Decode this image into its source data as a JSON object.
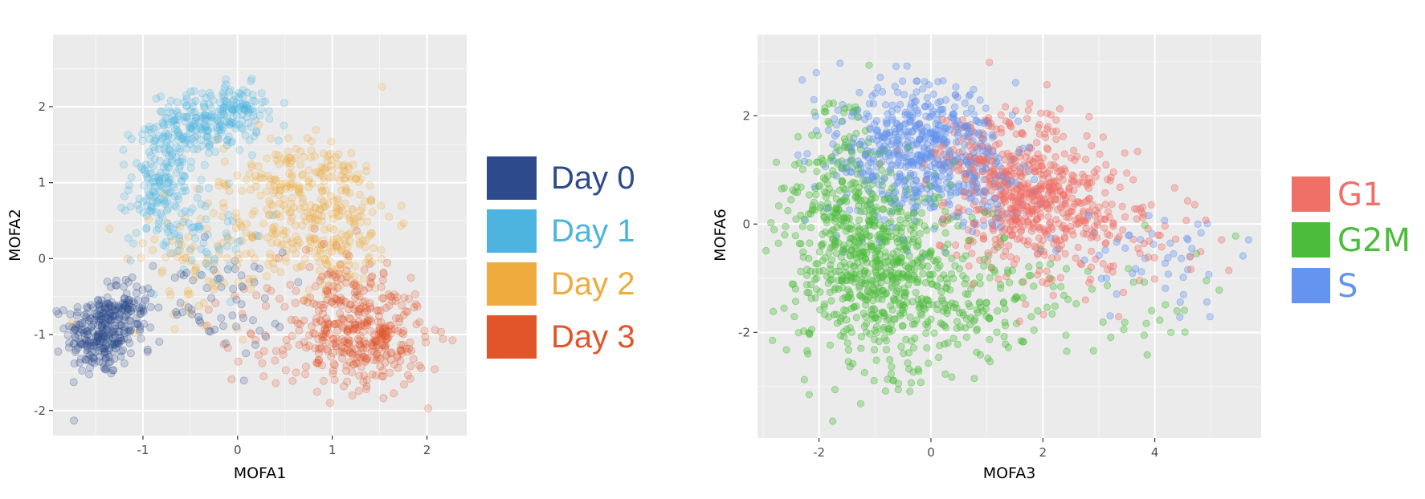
{
  "chart_data": [
    {
      "type": "scatter",
      "xlabel": "MOFA1",
      "ylabel": "MOFA2",
      "xlim": [
        -1.95,
        2.42
      ],
      "ylim": [
        -2.33,
        2.95
      ],
      "xticks": [
        -1,
        0,
        1,
        2
      ],
      "yticks": [
        -2,
        -1,
        0,
        1,
        2
      ],
      "grid": true,
      "legend_position": "right",
      "series": [
        {
          "name": "Day 0",
          "color": "#2d4a8c",
          "clusters": [
            {
              "cx": -1.45,
              "cy": -1.0,
              "sx": 0.18,
              "sy": 0.27,
              "n": 260
            },
            {
              "cx": -1.15,
              "cy": -0.65,
              "sx": 0.15,
              "sy": 0.2,
              "n": 80
            },
            {
              "cx": -0.3,
              "cy": -0.6,
              "sx": 0.4,
              "sy": 0.35,
              "n": 60
            }
          ]
        },
        {
          "name": "Day 1",
          "color": "#4db4e0",
          "clusters": [
            {
              "cx": -0.35,
              "cy": 1.78,
              "sx": 0.28,
              "sy": 0.2,
              "n": 200
            },
            {
              "cx": -0.8,
              "cy": 1.0,
              "sx": 0.17,
              "sy": 0.38,
              "n": 170
            },
            {
              "cx": 0.02,
              "cy": 1.95,
              "sx": 0.14,
              "sy": 0.17,
              "n": 60
            },
            {
              "cx": -0.4,
              "cy": 0.35,
              "sx": 0.35,
              "sy": 0.35,
              "n": 60
            }
          ]
        },
        {
          "name": "Day 2",
          "color": "#efab3d",
          "clusters": [
            {
              "cx": 0.95,
              "cy": 0.55,
              "sx": 0.35,
              "sy": 0.5,
              "n": 280
            },
            {
              "cx": 0.4,
              "cy": 1.0,
              "sx": 0.3,
              "sy": 0.35,
              "n": 90
            },
            {
              "cx": -0.3,
              "cy": 0.0,
              "sx": 0.45,
              "sy": 0.4,
              "n": 90
            }
          ]
        },
        {
          "name": "Day 3",
          "color": "#e2542a",
          "clusters": [
            {
              "cx": 1.35,
              "cy": -1.05,
              "sx": 0.32,
              "sy": 0.32,
              "n": 320
            },
            {
              "cx": 1.1,
              "cy": -0.35,
              "sx": 0.25,
              "sy": 0.3,
              "n": 80
            },
            {
              "cx": 0.4,
              "cy": -1.0,
              "sx": 0.35,
              "sy": 0.35,
              "n": 50
            }
          ]
        }
      ]
    },
    {
      "type": "scatter",
      "xlabel": "MOFA3",
      "ylabel": "MOFA6",
      "xlim": [
        -3.1,
        5.9
      ],
      "ylim": [
        -3.95,
        3.5
      ],
      "xticks": [
        -2,
        0,
        2,
        4
      ],
      "yticks": [
        -2,
        0,
        2
      ],
      "grid": true,
      "legend_position": "right",
      "series": [
        {
          "name": "G1",
          "color": "#f07068",
          "clusters": [
            {
              "cx": 1.8,
              "cy": 0.45,
              "sx": 0.65,
              "sy": 0.7,
              "n": 520
            },
            {
              "cx": 3.2,
              "cy": -0.2,
              "sx": 0.75,
              "sy": 0.55,
              "n": 90
            },
            {
              "cx": 0.8,
              "cy": 1.3,
              "sx": 0.5,
              "sy": 0.4,
              "n": 100
            }
          ]
        },
        {
          "name": "G2M",
          "color": "#4cbc3c",
          "clusters": [
            {
              "cx": -1.0,
              "cy": -0.8,
              "sx": 0.7,
              "sy": 0.85,
              "n": 650
            },
            {
              "cx": -1.7,
              "cy": 0.8,
              "sx": 0.4,
              "sy": 0.7,
              "n": 150
            },
            {
              "cx": 0.7,
              "cy": -1.5,
              "sx": 0.8,
              "sy": 0.6,
              "n": 150
            },
            {
              "cx": 3.5,
              "cy": -1.5,
              "sx": 0.8,
              "sy": 0.5,
              "n": 30
            }
          ]
        },
        {
          "name": "S",
          "color": "#6494ef",
          "clusters": [
            {
              "cx": -0.3,
              "cy": 1.4,
              "sx": 0.7,
              "sy": 0.65,
              "n": 520
            },
            {
              "cx": 0.8,
              "cy": 0.8,
              "sx": 0.5,
              "sy": 0.5,
              "n": 120
            },
            {
              "cx": 3.8,
              "cy": -0.6,
              "sx": 0.9,
              "sy": 0.55,
              "n": 50
            }
          ]
        }
      ]
    }
  ]
}
